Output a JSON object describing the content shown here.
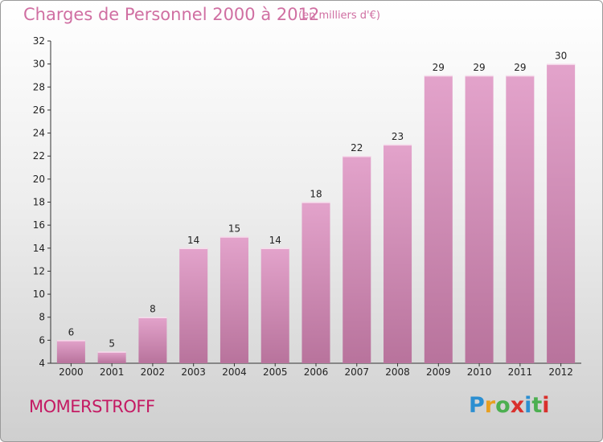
{
  "header": {
    "title": "Charges de Personnel 2000 à 2012",
    "subtitle": "(en milliers d'€)"
  },
  "footer": {
    "commune": "MOMERSTROFF",
    "logo_letters": [
      "P",
      "r",
      "o",
      "x",
      "i",
      "t",
      "i"
    ],
    "logo_colors": [
      "#2c8fd1",
      "#e8a020",
      "#4caf50",
      "#d9302c",
      "#2c8fd1",
      "#4caf50",
      "#d9302c"
    ]
  },
  "chart_data": {
    "type": "bar",
    "title": "Charges de Personnel 2000 à 2012",
    "subtitle": "(en milliers d'€)",
    "categories": [
      "2000",
      "2001",
      "2002",
      "2003",
      "2004",
      "2005",
      "2006",
      "2007",
      "2008",
      "2009",
      "2010",
      "2011",
      "2012"
    ],
    "values": [
      6,
      5,
      8,
      14,
      15,
      14,
      18,
      22,
      23,
      29,
      29,
      29,
      30
    ],
    "ylim": [
      4,
      32
    ],
    "yticks": [
      4,
      6,
      8,
      10,
      12,
      14,
      16,
      18,
      20,
      22,
      24,
      26,
      28,
      30,
      32
    ],
    "grid": false,
    "bar_color": "#e3a3cb",
    "bar_color_dark": "#b8739c"
  }
}
